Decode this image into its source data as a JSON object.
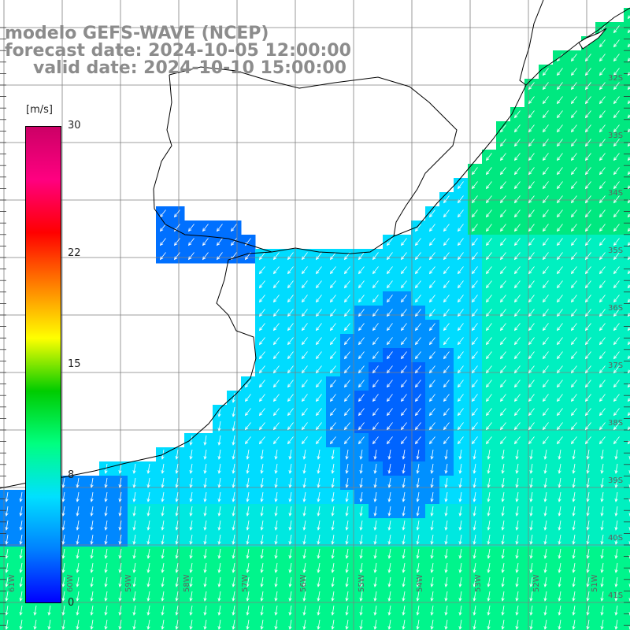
{
  "title": {
    "model": "modelo GEFS-WAVE (NCEP)",
    "forecast": "forecast date: 2024-10-05 12:00:00",
    "valid": "valid date: 2024-10-10 15:00:00"
  },
  "colorbar": {
    "unit": "[m/s]",
    "ticks": [
      {
        "label": "30",
        "value": 30
      },
      {
        "label": "22",
        "value": 22
      },
      {
        "label": "15",
        "value": 15
      },
      {
        "label": "8",
        "value": 8
      },
      {
        "label": "0",
        "value": 0
      }
    ],
    "colors": [
      "#0000ff",
      "#0080ff",
      "#00e0ff",
      "#00ff80",
      "#00cc00",
      "#ffff00",
      "#ff8000",
      "#ff0000",
      "#ff0080",
      "#cc0066"
    ]
  },
  "map": {
    "lon_labels": [
      "61W",
      "60W",
      "59W",
      "58W",
      "57W",
      "56W",
      "55W",
      "54W",
      "53W",
      "52W",
      "51W"
    ],
    "lat_labels": [
      "32S",
      "33S",
      "34S",
      "35S",
      "36S",
      "37S",
      "38S",
      "39S",
      "40S",
      "41S"
    ],
    "colors": {
      "land": "#ffffff",
      "grid": "#7f7f7f",
      "coast": "#000000",
      "arrow": "#ffffff"
    }
  }
}
